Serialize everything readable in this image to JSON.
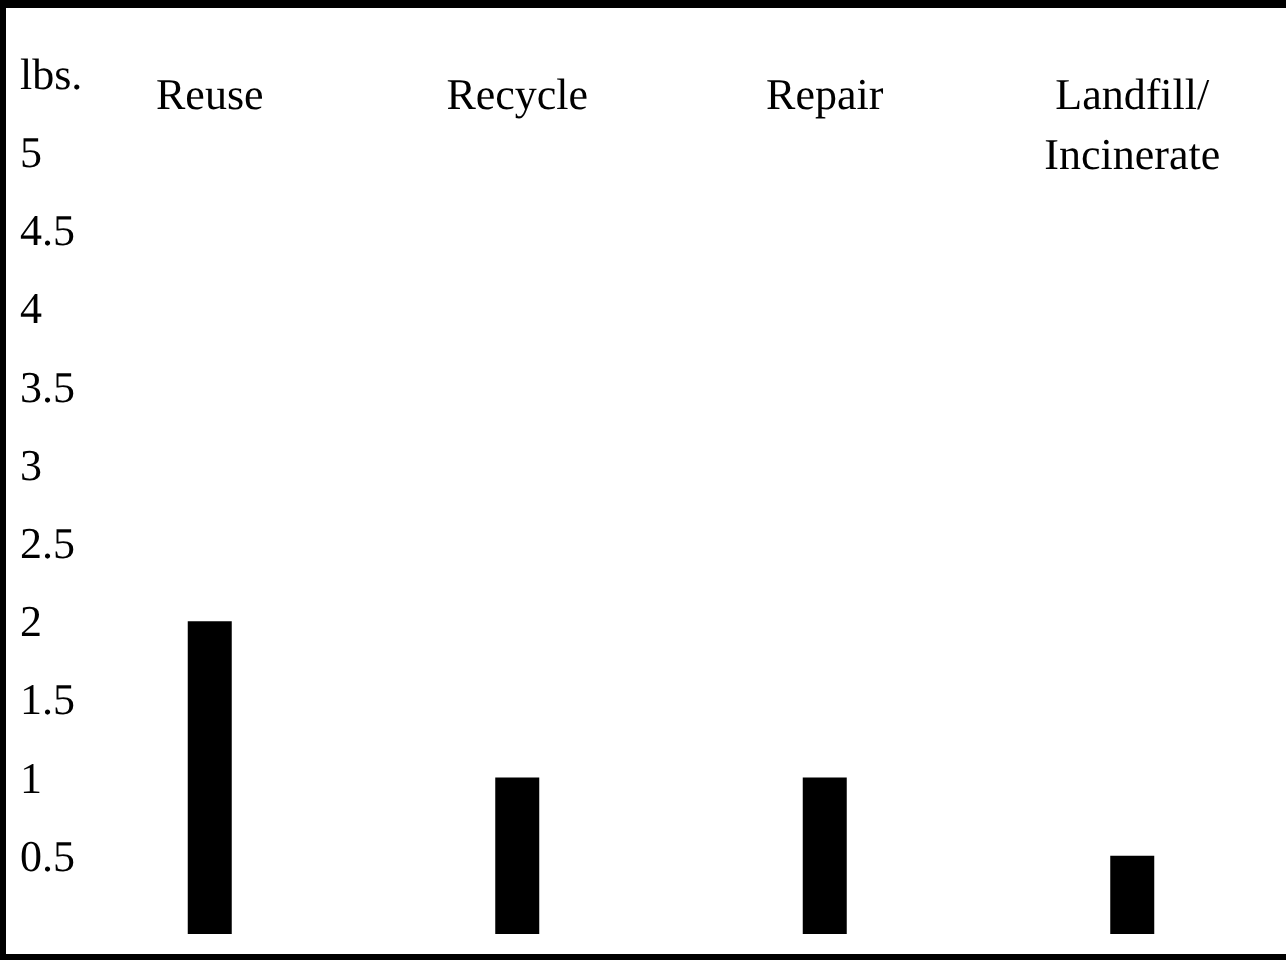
{
  "chart_data": {
    "type": "bar",
    "ylabel": "lbs.",
    "categories": [
      "Reuse",
      "Recycle",
      "Repair",
      "Landfill/\nIncinerate"
    ],
    "values": [
      2,
      1,
      1,
      0.5
    ],
    "color": "#000000",
    "ylim": [
      0,
      5
    ],
    "yticks": [
      0.5,
      1,
      1.5,
      2,
      2.5,
      3,
      3.5,
      4,
      4.5,
      5
    ],
    "grid": false
  }
}
